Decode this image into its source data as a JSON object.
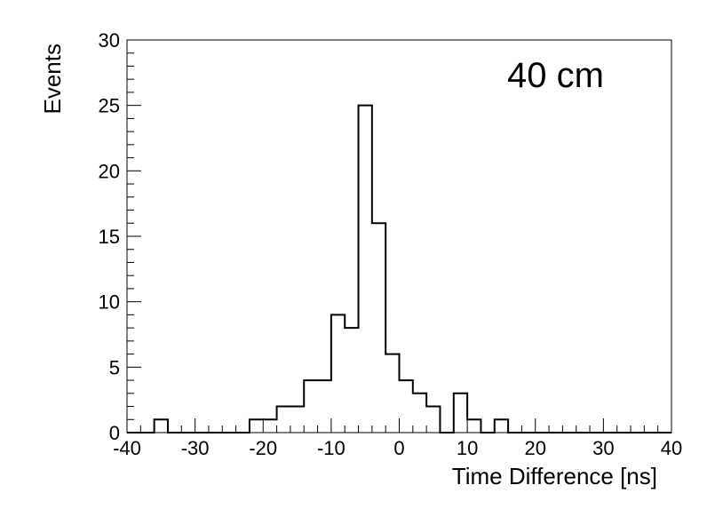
{
  "chart_data": {
    "type": "histogram",
    "xlabel": "Time Difference [ns]",
    "ylabel": "Events",
    "annotation": "40 cm",
    "xlim": [
      -40,
      40
    ],
    "ylim": [
      0,
      30
    ],
    "x_ticks": [
      -40,
      -30,
      -20,
      -10,
      0,
      10,
      20,
      30,
      40
    ],
    "y_ticks": [
      0,
      5,
      10,
      15,
      20,
      25,
      30
    ],
    "bin_width": 2,
    "bin_edges_start": -40,
    "values": [
      0,
      0,
      1,
      0,
      0,
      0,
      0,
      0,
      0,
      1,
      1,
      2,
      2,
      4,
      4,
      9,
      8,
      25,
      16,
      6,
      4,
      3,
      2,
      0,
      3,
      1,
      0,
      1,
      0,
      0,
      0,
      0,
      0,
      0,
      0,
      0,
      0,
      0,
      0,
      0
    ],
    "line_color": "#000000",
    "grid": false,
    "legend": "none"
  }
}
